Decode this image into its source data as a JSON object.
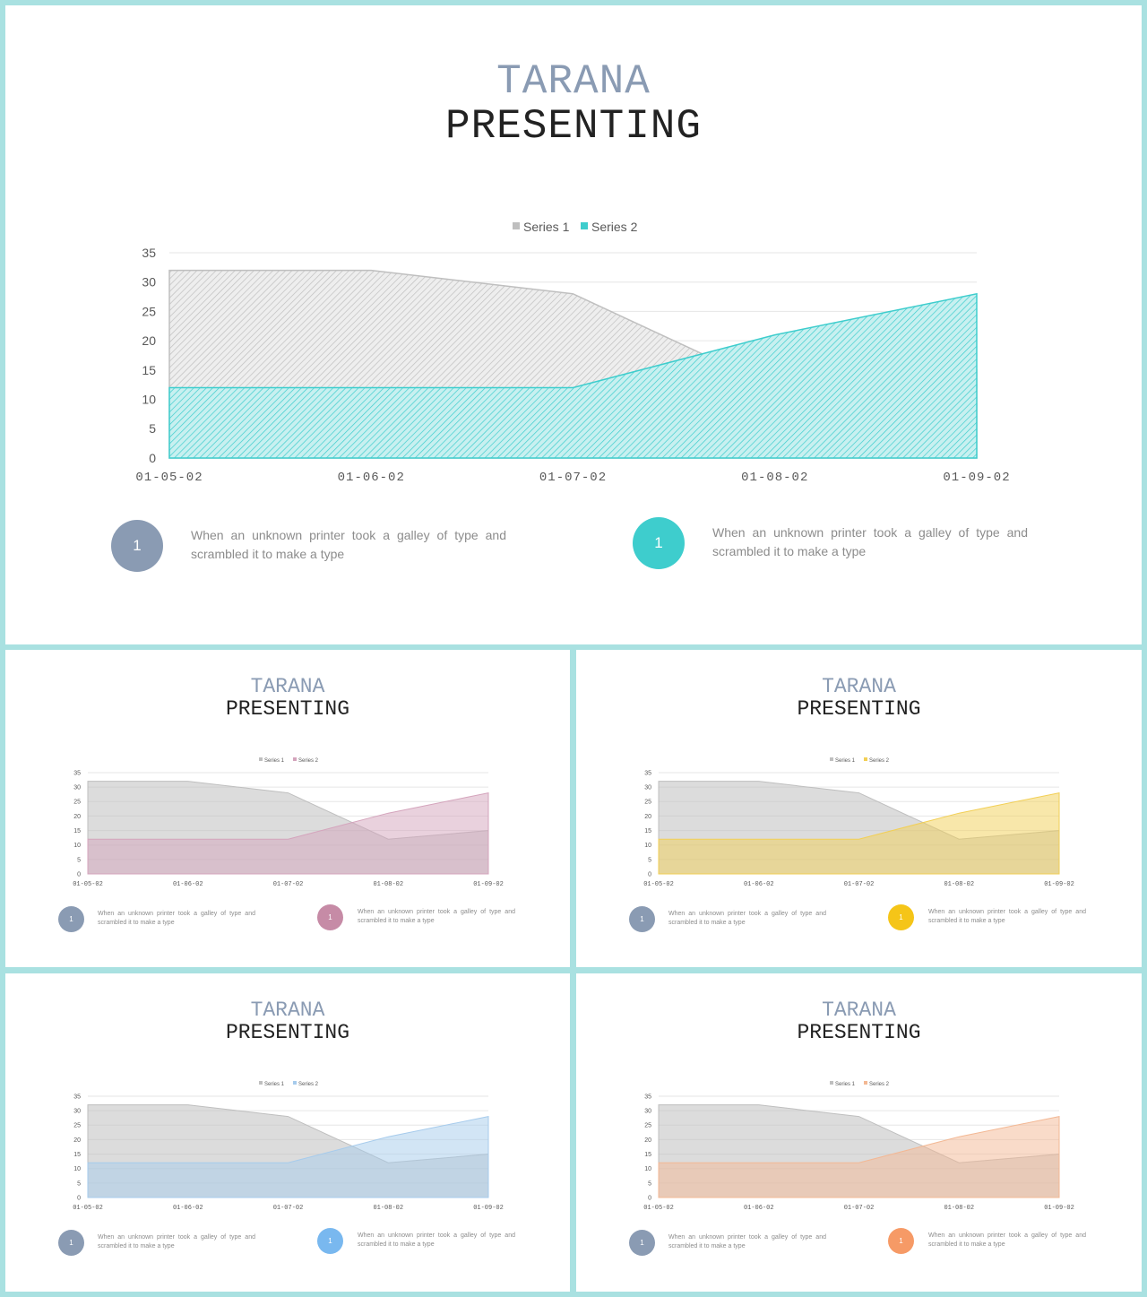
{
  "slides": [
    {
      "id": "main",
      "title_line1": "TARANA",
      "title_line2": "PRESENTING",
      "series2_color": "#3ecdcd",
      "hatched": true,
      "info": [
        {
          "number": "1",
          "text": "When an unknown printer took a galley of type and scrambled it to make a type",
          "color": "#8a9bb3"
        },
        {
          "number": "1",
          "text": "When an unknown printer took a galley of type and scrambled it to make a type",
          "color": "#3ecdcd"
        }
      ]
    },
    {
      "id": "pink",
      "title_line1": "TARANA",
      "title_line2": "PRESENTING",
      "series2_color": "#d4a4bc",
      "hatched": false,
      "info": [
        {
          "number": "1",
          "text": "When an unknown printer took a galley of type and scrambled it to make a type",
          "color": "#8a9bb3"
        },
        {
          "number": "1",
          "text": "When an unknown printer took a galley of type and scrambled it to make a type",
          "color": "#c68ba6"
        }
      ]
    },
    {
      "id": "yellow",
      "title_line1": "TARANA",
      "title_line2": "PRESENTING",
      "series2_color": "#f2cf55",
      "hatched": false,
      "info": [
        {
          "number": "1",
          "text": "When an unknown printer took a galley of type and scrambled it to make a type",
          "color": "#8a9bb3"
        },
        {
          "number": "1",
          "text": "When an unknown printer took a galley of type and scrambled it to make a type",
          "color": "#f5c518"
        }
      ]
    },
    {
      "id": "blue",
      "title_line1": "TARANA",
      "title_line2": "PRESENTING",
      "series2_color": "#a6cbec",
      "hatched": false,
      "info": [
        {
          "number": "1",
          "text": "When an unknown printer took a galley of type and scrambled it to make a type",
          "color": "#8a9bb3"
        },
        {
          "number": "1",
          "text": "When an unknown printer took a galley of type and scrambled it to make a type",
          "color": "#79b8ef"
        }
      ]
    },
    {
      "id": "orange",
      "title_line1": "TARANA",
      "title_line2": "PRESENTING",
      "series2_color": "#f3b894",
      "hatched": false,
      "info": [
        {
          "number": "1",
          "text": "When an unknown printer took a galley of type and scrambled it to make a type",
          "color": "#8a9bb3"
        },
        {
          "number": "1",
          "text": "When an unknown printer took a galley of type and scrambled it to make a type",
          "color": "#f69a66"
        }
      ]
    }
  ],
  "chart_data": {
    "type": "area",
    "categories": [
      "01-05-02",
      "01-06-02",
      "01-07-02",
      "01-08-02",
      "01-09-02"
    ],
    "series": [
      {
        "name": "Series 1",
        "values": [
          32,
          32,
          28,
          12,
          15
        ],
        "color": "#bfbfbf"
      },
      {
        "name": "Series 2",
        "values": [
          12,
          12,
          12,
          21,
          28
        ]
      }
    ],
    "ylim": [
      0,
      35
    ],
    "yticks": [
      "0",
      "5",
      "10",
      "15",
      "20",
      "25",
      "30",
      "35"
    ],
    "grid": true,
    "legend": "top"
  }
}
